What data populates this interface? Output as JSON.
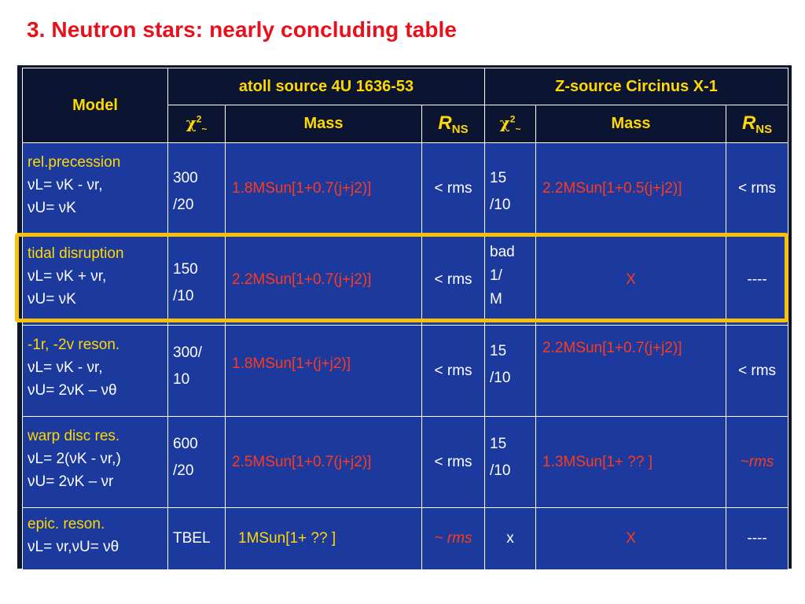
{
  "title": "3. Neutron stars:  nearly concluding table",
  "header": {
    "model": "Model",
    "atoll": "atoll source 4U 1636-53",
    "zsource": "Z-source Circinus X-1",
    "chi": "χ",
    "chi_sup": "2",
    "chi_sub": "~",
    "mass": "Mass",
    "rns_r": "R",
    "rns_sub": "NS"
  },
  "colors": {
    "accent": "#ffd800",
    "title": "#e8101a",
    "mass": "#ff3a1a",
    "cell_bg": "#1c3a9e",
    "header_bg": "#0b1430",
    "highlight": "#f8c10a"
  },
  "rows": [
    {
      "name": "rel.precession",
      "f1": "νL= νK - νr,",
      "f2": "νU= νK",
      "atoll_chi_a": "300",
      "atoll_chi_b": "/20",
      "atoll_mass": "1.8MSun[1+0.7(j+j2)]",
      "atoll_r": "< rms",
      "z_chi_a": "15",
      "z_chi_b": "/10",
      "z_chi_c": "",
      "z_mass": "2.2MSun[1+0.5(j+j2)]",
      "z_r": "< rms"
    },
    {
      "name": "tidal disruption",
      "f1": "νL= νK + νr,",
      "f2": "νU= νK",
      "atoll_chi_a": "150",
      "atoll_chi_b": "/10",
      "atoll_mass": "2.2MSun[1+0.7(j+j2)]",
      "atoll_r": "< rms",
      "z_chi_a": "bad",
      "z_chi_b": "1/",
      "z_chi_c": "M",
      "z_mass": "X",
      "z_r": "----"
    },
    {
      "name": "-1r, -2v reson.",
      "f1": "νL= νK - νr,",
      "f2": "νU= 2νK – νθ",
      "atoll_chi_a": "300/",
      "atoll_chi_b": "10",
      "atoll_mass": "1.8MSun[1+(j+j2)]",
      "atoll_r": "< rms",
      "z_chi_a": "15",
      "z_chi_b": "/10",
      "z_chi_c": "",
      "z_mass": "2.2MSun[1+0.7(j+j2)]",
      "z_r": "< rms"
    },
    {
      "name": "warp disc res.",
      "f1": "νL= 2(νK - νr,)",
      "f2": "νU= 2νK – νr",
      "atoll_chi_a": "600",
      "atoll_chi_b": "/20",
      "atoll_mass": "2.5MSun[1+0.7(j+j2)]",
      "atoll_r": "< rms",
      "z_chi_a": "15",
      "z_chi_b": "/10",
      "z_chi_c": "",
      "z_mass": "1.3MSun[1+ ?? ]",
      "z_r": "~rms"
    },
    {
      "name": "epic. reson.",
      "f1": "νL= νr,νU= νθ",
      "f2": "",
      "atoll_chi_a": "TBEL",
      "atoll_chi_b": "",
      "atoll_mass": "1MSun[1+ ?? ]",
      "atoll_r": "~ rms",
      "z_chi_a": "x",
      "z_chi_b": "",
      "z_chi_c": "",
      "z_mass": "X",
      "z_r": "----"
    }
  ]
}
